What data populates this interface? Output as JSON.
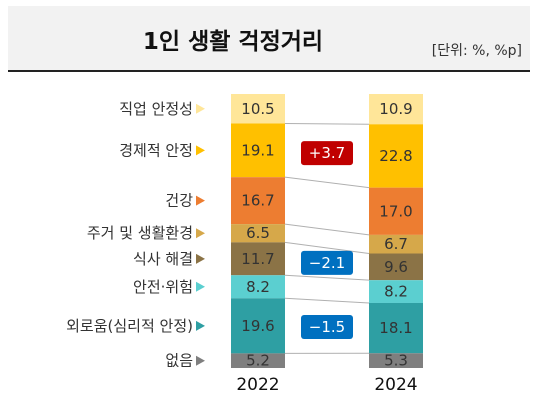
{
  "header": {
    "title": "1인 생활 걱정거리",
    "unit": "[단위: %, %p]"
  },
  "chart_data": {
    "type": "bar",
    "stacked": true,
    "normalized_to": 100,
    "x": [
      "2022",
      "2024"
    ],
    "categories": [
      "직업 안정성",
      "경제적 안정",
      "건강",
      "주거 및 생활환경",
      "식사 해결",
      "안전·위험",
      "외로움(심리적 안정)",
      "없음"
    ],
    "series": [
      {
        "name": "직업 안정성",
        "values": [
          10.5,
          10.9
        ],
        "color": "#ffe699"
      },
      {
        "name": "경제적 안정",
        "values": [
          19.1,
          22.8
        ],
        "color": "#ffc000"
      },
      {
        "name": "건강",
        "values": [
          16.7,
          17.0
        ],
        "color": "#ed7d31"
      },
      {
        "name": "주거 및 생활환경",
        "values": [
          6.5,
          6.7
        ],
        "color": "#d6a84a"
      },
      {
        "name": "식사 해결",
        "values": [
          11.7,
          9.6
        ],
        "color": "#8b7346"
      },
      {
        "name": "안전·위험",
        "values": [
          8.2,
          8.2
        ],
        "color": "#5bcfd0"
      },
      {
        "name": "외로움(심리적 안정)",
        "values": [
          19.6,
          18.1
        ],
        "color": "#2e9fa3"
      },
      {
        "name": "없음",
        "values": [
          5.2,
          5.3
        ],
        "color": "#7f7f7f"
      }
    ],
    "annotations": [
      {
        "category": "경제적 안정",
        "text": "+3.7",
        "color": "#c00000"
      },
      {
        "category": "식사 해결",
        "text": "−2.1",
        "color": "#0070c0"
      },
      {
        "category": "외로움(심리적 안정)",
        "text": "−1.5",
        "color": "#0070c0"
      }
    ],
    "marker_colors": [
      "#ffe699",
      "#ffc000",
      "#ed7d31",
      "#d6a84a",
      "#8b7346",
      "#5bcfd0",
      "#2e9fa3",
      "#7f7f7f"
    ]
  }
}
